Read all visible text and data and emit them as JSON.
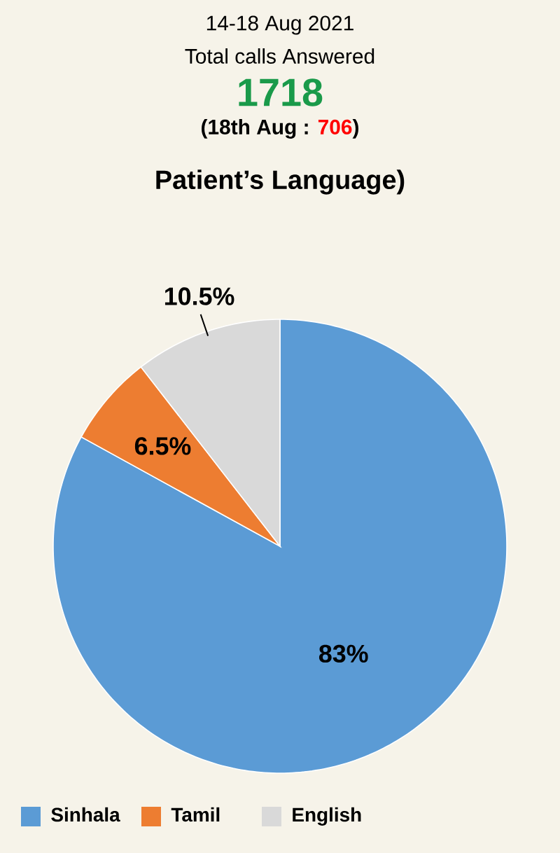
{
  "chart_data": {
    "type": "pie",
    "title": "Patient’s Language)",
    "annotations": [
      "14-18 Aug 2021",
      "Total calls Answered",
      "1718",
      "(18th Aug : ",
      "706",
      ")"
    ],
    "categories": [
      "Sinhala",
      "Tamil",
      "English"
    ],
    "values": [
      83,
      6.5,
      10.5
    ],
    "colors": [
      "#5b9bd5",
      "#ed7d31",
      "#d9d9d9"
    ],
    "value_labels": [
      "83%",
      "6.5%",
      "10.5%"
    ],
    "legend": "bottom"
  }
}
